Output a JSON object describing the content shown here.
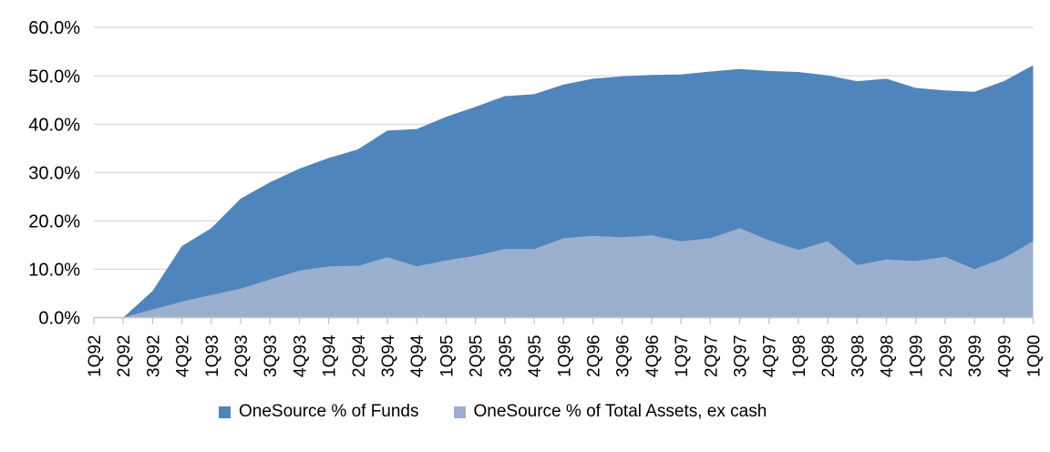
{
  "chart_data": {
    "type": "area",
    "title": "",
    "overlap_mode": "overlapping",
    "grid": "horizontal",
    "legend_position": "bottom",
    "ylim": [
      0,
      60
    ],
    "y_ticks": [
      "0.0%",
      "10.0%",
      "20.0%",
      "30.0%",
      "40.0%",
      "50.0%",
      "60.0%"
    ],
    "categories": [
      "1Q92",
      "2Q92",
      "3Q92",
      "4Q92",
      "1Q93",
      "2Q93",
      "3Q93",
      "4Q93",
      "1Q94",
      "2Q94",
      "3Q94",
      "4Q94",
      "1Q95",
      "2Q95",
      "3Q95",
      "4Q95",
      "1Q96",
      "2Q96",
      "3Q96",
      "4Q96",
      "1Q97",
      "2Q97",
      "3Q97",
      "4Q97",
      "1Q98",
      "2Q98",
      "3Q98",
      "4Q98",
      "1Q99",
      "2Q99",
      "3Q99",
      "4Q99",
      "1Q00"
    ],
    "series": [
      {
        "name": "OneSource % of Funds",
        "color": "#4E85BC",
        "values": [
          0.0,
          0.0,
          5.5,
          14.8,
          18.5,
          24.6,
          28.0,
          30.8,
          33.0,
          34.8,
          38.7,
          39.0,
          41.5,
          43.6,
          45.8,
          46.2,
          48.2,
          49.4,
          49.9,
          50.2,
          50.3,
          50.9,
          51.4,
          51.0,
          50.8,
          50.1,
          48.9,
          49.4,
          47.5,
          47.0,
          46.7,
          48.9,
          52.2
        ]
      },
      {
        "name": "OneSource % of Total Assets, ex cash",
        "color": "#9BB0CF",
        "values": [
          0.0,
          0.0,
          1.7,
          3.3,
          4.7,
          6.0,
          7.9,
          9.7,
          10.6,
          10.7,
          12.5,
          10.6,
          11.8,
          12.8,
          14.2,
          14.2,
          16.4,
          16.9,
          16.6,
          17.0,
          15.8,
          16.4,
          18.5,
          16.0,
          14.0,
          15.8,
          10.9,
          12.0,
          11.7,
          12.6,
          10.0,
          12.3,
          15.8
        ]
      }
    ],
    "axis_color": "#C4C4C4",
    "gridline_color": "#D9D9D9"
  }
}
